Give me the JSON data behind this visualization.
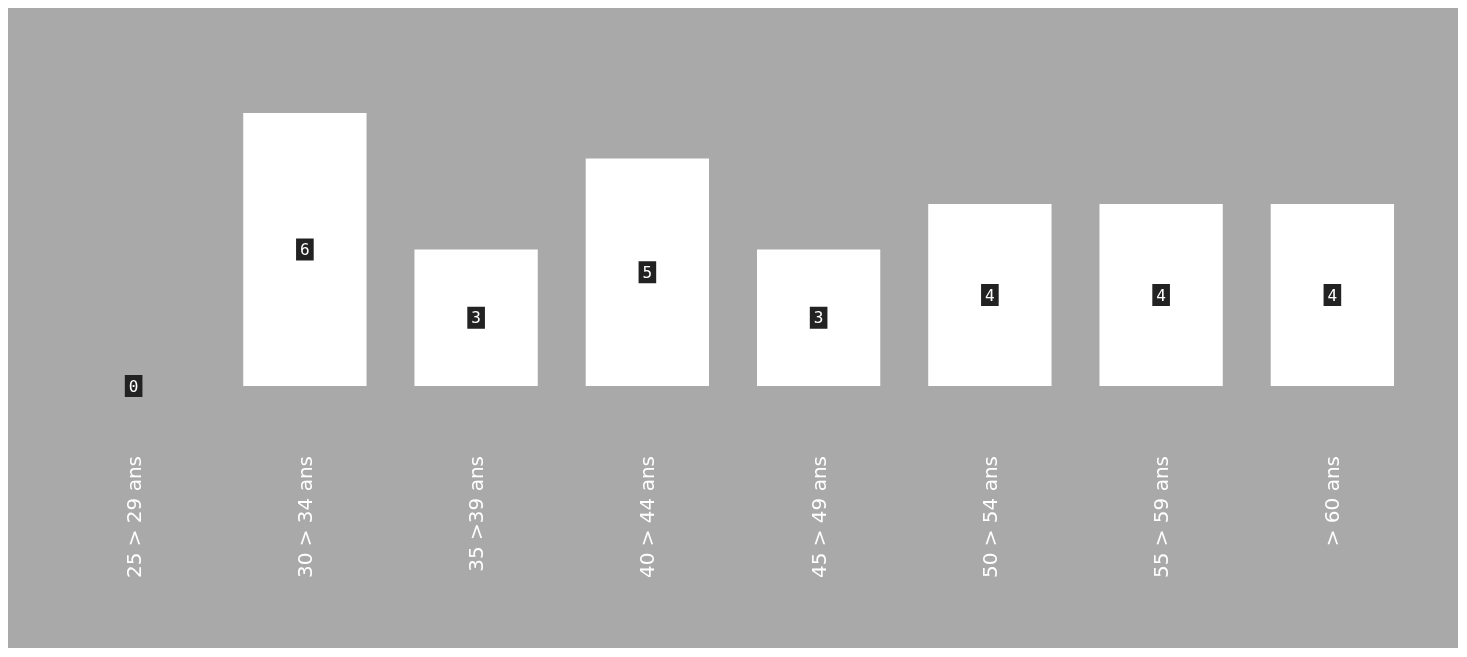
{
  "chart_data": {
    "type": "bar",
    "categories": [
      "25 > 29 ans",
      "30 > 34 ans",
      "35 >39 ans",
      "40 > 44 ans",
      "45 > 49 ans",
      "50 > 54 ans",
      "55 > 59 ans",
      "> 60 ans"
    ],
    "values": [
      0,
      6,
      3,
      5,
      3,
      4,
      4,
      4
    ],
    "color": "#ffffff",
    "data_labels": true
  }
}
